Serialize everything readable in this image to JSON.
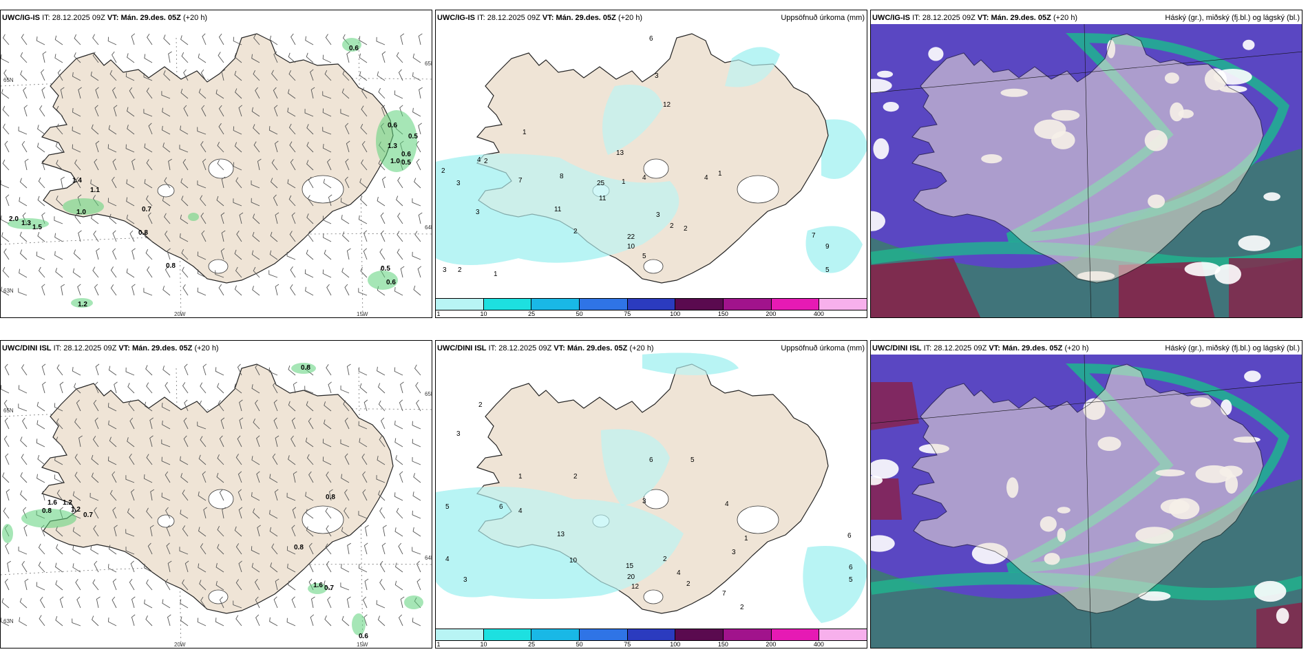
{
  "colors": {
    "land": "#efe4d6",
    "coast": "#222222",
    "precip": "#b8f4f4",
    "wind_green": "#5dd27a",
    "cloud_high": "#5a47c2",
    "cloud_mid": "#1fb58f",
    "cloud_low": "#1f5c63",
    "cloud_red": "#8a2048"
  },
  "colorbar": {
    "colors": [
      "#b8f4f4",
      "#1de0e0",
      "#19b8e6",
      "#2f74e6",
      "#2b3bbf",
      "#5a0a4f",
      "#a1138c",
      "#e61ab4",
      "#f7b0ec"
    ],
    "labels": [
      "1",
      "10",
      "25",
      "50",
      "75",
      "100",
      "150",
      "200",
      "400"
    ]
  },
  "panels": [
    {
      "model": "UWC/IG-IS",
      "it_label": "IT:",
      "it": "28.12.2025 09Z",
      "vt_label": "VT: Mán. 29.des. 05Z",
      "lead": "(+20 h)",
      "title_right": "",
      "axis_ticks": [
        "20W",
        "15W",
        "65N",
        "64N",
        "63N"
      ],
      "labels": [
        "0.6",
        "0.6",
        "0.5",
        "1.3",
        "0.6",
        "0.5",
        "1.0",
        "1.4",
        "0.7",
        "0.8",
        "0.8",
        "1.0",
        "2.0",
        "1.3",
        "1.5",
        "0.5",
        "1.2",
        "0.6",
        "1.1"
      ]
    },
    {
      "model": "UWC/IG-IS",
      "it_label": "IT:",
      "it": "28.12.2025 09Z",
      "vt_label": "VT: Mán. 29.des. 05Z",
      "lead": "(+20 h)",
      "title_right": "Uppsöfnuð úrkoma (mm)",
      "labels": [
        "2",
        "3",
        "3",
        "2",
        "6",
        "3",
        "1",
        "4",
        "12",
        "13",
        "25",
        "11",
        "11",
        "22",
        "10",
        "5",
        "3",
        "2",
        "2",
        "7",
        "9",
        "5",
        "3",
        "2",
        "1",
        "4",
        "7",
        "8",
        "1",
        "4",
        "1",
        "2"
      ]
    },
    {
      "model": "UWC/IG-IS",
      "it_label": "IT:",
      "it": "28.12.2025 09Z",
      "vt_label": "VT: Mán. 29.des. 05Z",
      "lead": "(+20 h)",
      "title_right": "Háský (gr.), miðský (fj.bl.) og lágský (bl.)"
    },
    {
      "model": "UWC/DINI ISL",
      "it_label": "IT:",
      "it": "28.12.2025 09Z",
      "vt_label": "VT: Mán. 29.des. 05Z",
      "lead": "(+20 h)",
      "title_right": "",
      "axis_ticks": [
        "20W",
        "15W",
        "65N",
        "64N",
        "63N"
      ],
      "labels": [
        "0.8",
        "0.8",
        "1.2",
        "1.6",
        "1.2",
        "0.7",
        "0.8",
        "1.6",
        "0.7",
        "0.6",
        "0.8"
      ]
    },
    {
      "model": "UWC/DINI ISL",
      "it_label": "IT:",
      "it": "28.12.2025 09Z",
      "vt_label": "VT: Mán. 29.des. 05Z",
      "lead": "(+20 h)",
      "title_right": "Uppsöfnuð úrkoma (mm)",
      "labels": [
        "3",
        "2",
        "5",
        "6",
        "4",
        "13",
        "10",
        "15",
        "20",
        "12",
        "2",
        "4",
        "2",
        "3",
        "6",
        "5",
        "4",
        "3",
        "7",
        "2",
        "1",
        "6",
        "6",
        "5",
        "4",
        "3",
        "1",
        "2"
      ]
    },
    {
      "model": "UWC/DINI ISL",
      "it_label": "IT:",
      "it": "28.12.2025 09Z",
      "vt_label": "VT: Mán. 29.des. 05Z",
      "lead": "(+20 h)",
      "title_right": "Háský (gr.), miðský (fj.bl.) og lágský (bl.)"
    }
  ]
}
